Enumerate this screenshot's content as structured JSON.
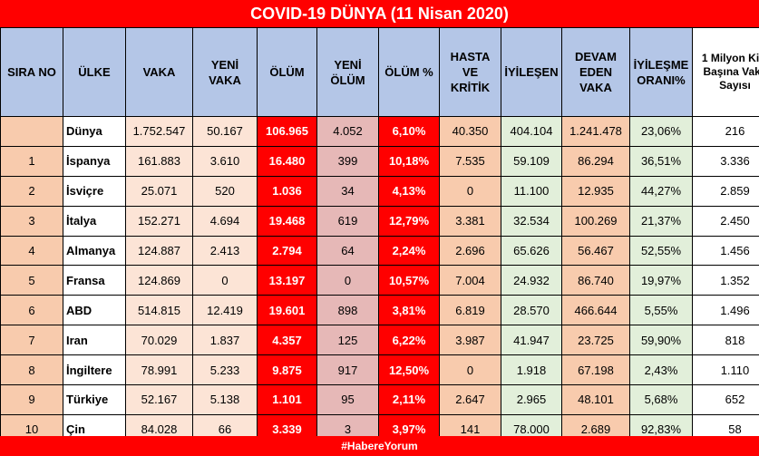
{
  "title": "COVID-19 DÜNYA (11 Nisan 2020)",
  "footer": "#HabereYorum",
  "headers": [
    "SIRA NO",
    "ÜLKE",
    "VAKA",
    "YENİ VAKA",
    "ÖLÜM",
    "YENİ ÖLÜM",
    "ÖLÜM %",
    "HASTA VE KRİTİK",
    "İYİLEŞEN",
    "DEVAM EDEN VAKA",
    "İYİLEŞME ORANI%",
    "1 Milyon Kişi Başına Vaka Sayısı"
  ],
  "rows": [
    [
      "",
      "Dünya",
      "1.752.547",
      "50.167",
      "106.965",
      "4.052",
      "6,10%",
      "40.350",
      "404.104",
      "1.241.478",
      "23,06%",
      "216"
    ],
    [
      "1",
      "İspanya",
      "161.883",
      "3.610",
      "16.480",
      "399",
      "10,18%",
      "7.535",
      "59.109",
      "86.294",
      "36,51%",
      "3.336"
    ],
    [
      "2",
      "İsviçre",
      "25.071",
      "520",
      "1.036",
      "34",
      "4,13%",
      "0",
      "11.100",
      "12.935",
      "44,27%",
      "2.859"
    ],
    [
      "3",
      "İtalya",
      "152.271",
      "4.694",
      "19.468",
      "619",
      "12,79%",
      "3.381",
      "32.534",
      "100.269",
      "21,37%",
      "2.450"
    ],
    [
      "4",
      "Almanya",
      "124.887",
      "2.413",
      "2.794",
      "64",
      "2,24%",
      "2.696",
      "65.626",
      "56.467",
      "52,55%",
      "1.456"
    ],
    [
      "5",
      "Fransa",
      "124.869",
      "0",
      "13.197",
      "0",
      "10,57%",
      "7.004",
      "24.932",
      "86.740",
      "19,97%",
      "1.352"
    ],
    [
      "6",
      "ABD",
      "514.815",
      "12.419",
      "19.601",
      "898",
      "3,81%",
      "6.819",
      "28.570",
      "466.644",
      "5,55%",
      "1.496"
    ],
    [
      "7",
      "Iran",
      "70.029",
      "1.837",
      "4.357",
      "125",
      "6,22%",
      "3.987",
      "41.947",
      "23.725",
      "59,90%",
      "818"
    ],
    [
      "8",
      "İngiltere",
      "78.991",
      "5.233",
      "9.875",
      "917",
      "12,50%",
      "0",
      "1.918",
      "67.198",
      "2,43%",
      "1.110"
    ],
    [
      "9",
      "Türkiye",
      "52.167",
      "5.138",
      "1.101",
      "95",
      "2,11%",
      "2.647",
      "2.965",
      "48.101",
      "5,68%",
      "652"
    ],
    [
      "10",
      "Çin",
      "84.028",
      "66",
      "3.339",
      "3",
      "3,97%",
      "141",
      "78.000",
      "2.689",
      "92,83%",
      "58"
    ]
  ]
}
